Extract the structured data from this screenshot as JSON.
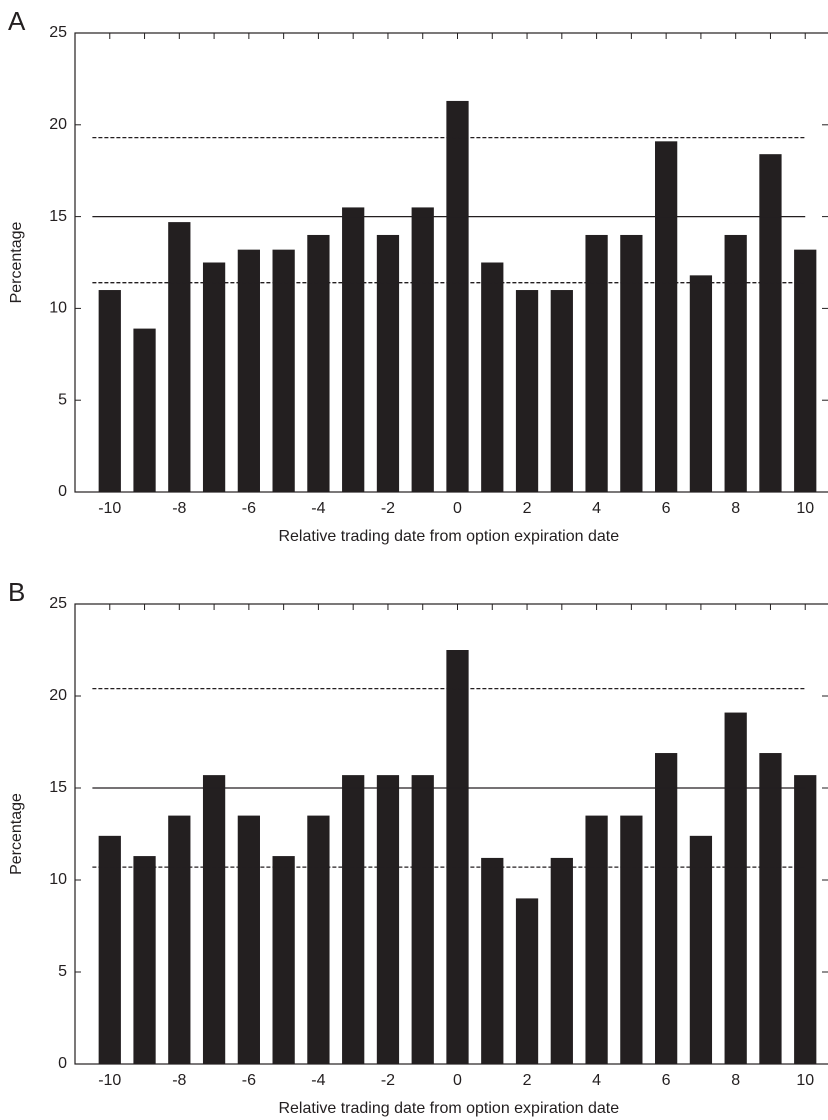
{
  "chart_data": [
    {
      "type": "bar",
      "panel_label": "A",
      "x": [
        -10,
        -9,
        -8,
        -7,
        -6,
        -5,
        -4,
        -3,
        -2,
        -1,
        0,
        1,
        2,
        3,
        4,
        5,
        6,
        7,
        8,
        9,
        10
      ],
      "values": [
        11.0,
        8.9,
        14.7,
        12.5,
        13.2,
        13.2,
        14.0,
        15.5,
        14.0,
        15.5,
        21.3,
        12.5,
        11.0,
        11.0,
        14.0,
        14.0,
        19.1,
        11.8,
        14.0,
        18.4,
        13.2
      ],
      "color": "#231f20",
      "xlim": [
        -11,
        11
      ],
      "xticks": [
        -10,
        -8,
        -6,
        -4,
        -2,
        0,
        2,
        4,
        6,
        8,
        10
      ],
      "ylim": [
        0,
        25
      ],
      "yticks": [
        0,
        5,
        10,
        15,
        20,
        25
      ],
      "xlabel": "Relative trading date from option expiration date",
      "ylabel": "Percentage",
      "reference_lines": [
        {
          "value": 19.3,
          "style": "dashed"
        },
        {
          "value": 15,
          "style": "solid"
        },
        {
          "value": 11.4,
          "style": "dashed"
        }
      ]
    },
    {
      "type": "bar",
      "panel_label": "B",
      "x": [
        -10,
        -9,
        -8,
        -7,
        -6,
        -5,
        -4,
        -3,
        -2,
        -1,
        0,
        1,
        2,
        3,
        4,
        5,
        6,
        7,
        8,
        9,
        10
      ],
      "values": [
        12.4,
        11.3,
        13.5,
        15.7,
        13.5,
        11.3,
        13.5,
        15.7,
        15.7,
        15.7,
        22.5,
        11.2,
        9.0,
        11.2,
        13.5,
        13.5,
        16.9,
        12.4,
        19.1,
        16.9,
        15.7
      ],
      "color": "#231f20",
      "xlim": [
        -11,
        11
      ],
      "xticks": [
        -10,
        -8,
        -6,
        -4,
        -2,
        0,
        2,
        4,
        6,
        8,
        10
      ],
      "ylim": [
        0,
        25
      ],
      "yticks": [
        0,
        5,
        10,
        15,
        20,
        25
      ],
      "xlabel": "Relative trading date from option expiration date",
      "ylabel": "Percentage",
      "reference_lines": [
        {
          "value": 20.4,
          "style": "dashed"
        },
        {
          "value": 15,
          "style": "solid"
        },
        {
          "value": 10.7,
          "style": "dashed"
        }
      ]
    }
  ]
}
